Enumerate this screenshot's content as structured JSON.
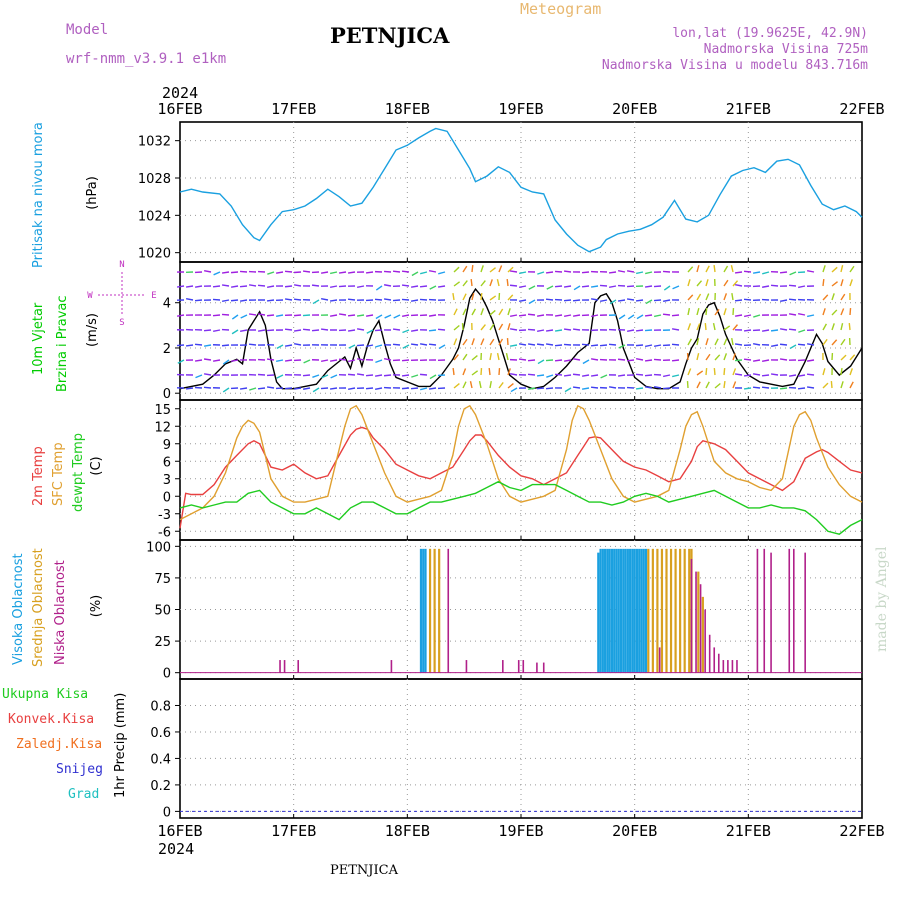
{
  "header": {
    "model_label": "Model",
    "model_name": "wrf-nmm_v3.9.1  e1km",
    "location": "PETNJICA",
    "chart_type": "Meteogram",
    "coords": "lon,lat (19.9625E, 42.9N)",
    "altitude": "Nadmorska Visina 725m",
    "model_altitude": "Nadmorska Visina u modelu 843.716m",
    "footer_location": "PETNJICA",
    "credit": "made by Angel"
  },
  "time_axis": {
    "year": "2024",
    "ticks": [
      "16FEB",
      "17FEB",
      "18FEB",
      "19FEB",
      "20FEB",
      "21FEB",
      "22FEB"
    ],
    "range_days": [
      0,
      6
    ]
  },
  "colors": {
    "pressure": "#1aa0e0",
    "wind_label": "#00cc00",
    "temp2m": "#e84040",
    "sfc": "#e0a030",
    "dewpt": "#20cc20",
    "high_cloud": "#1aa0e0",
    "mid_cloud": "#d8a020",
    "low_cloud": "#b0208a",
    "precip_total": "#20cc20",
    "precip_conv": "#e84040",
    "precip_frozen": "#f07020",
    "snow": "#3030d0",
    "hail": "#20c0c0",
    "compass": "#c030c0"
  },
  "panels": {
    "pressure": {
      "label1": "Pritisak na nivou mora",
      "unit": "(hPa)"
    },
    "wind": {
      "label1": "10m Vjetar",
      "label2": "Brzina i Pravac",
      "unit": "(m/s)",
      "compass_n": "N",
      "compass_s": "S",
      "compass_e": "E",
      "compass_w": "W"
    },
    "temp": {
      "label1": "2m Temp",
      "label2": "SFC Temp",
      "label3": "dewpt Temp",
      "unit": "(C)"
    },
    "cloud": {
      "label1": "Visoka Oblacnost",
      "label2": "Srednja Oblacnost",
      "label3": "Niska Oblacnost",
      "unit": "(%)"
    },
    "precip": {
      "label1": "Ukupna Kisa",
      "label2": "Konvek.Kisa",
      "label3": "Zaledj.Kisa",
      "label4": "Snijeg",
      "label5": "Grad",
      "unit": "1hr Precip (mm)"
    }
  },
  "chart_data": [
    {
      "type": "line",
      "name": "pressure",
      "ylim": [
        1019,
        1034
      ],
      "yticks": [
        1020,
        1024,
        1028,
        1032
      ],
      "series": [
        {
          "name": "Pritisak na nivou mora",
          "x": [
            0,
            0.1,
            0.2,
            0.35,
            0.45,
            0.55,
            0.65,
            0.7,
            0.8,
            0.9,
            1.0,
            1.1,
            1.2,
            1.3,
            1.4,
            1.5,
            1.6,
            1.7,
            1.8,
            1.9,
            2.0,
            2.1,
            2.2,
            2.25,
            2.35,
            2.45,
            2.55,
            2.6,
            2.7,
            2.8,
            2.9,
            3.0,
            3.1,
            3.2,
            3.3,
            3.4,
            3.5,
            3.6,
            3.7,
            3.75,
            3.85,
            3.95,
            4.05,
            4.15,
            4.25,
            4.35,
            4.45,
            4.55,
            4.65,
            4.75,
            4.85,
            4.95,
            5.05,
            5.15,
            5.25,
            5.35,
            5.45,
            5.55,
            5.65,
            5.75,
            5.85,
            5.95,
            6.0
          ],
          "y": [
            1026.5,
            1026.8,
            1026.5,
            1026.3,
            1025,
            1023,
            1021.6,
            1021.3,
            1023,
            1024.4,
            1024.6,
            1025,
            1025.8,
            1026.8,
            1026,
            1025,
            1025.3,
            1027,
            1029,
            1031,
            1031.5,
            1032.3,
            1033,
            1033.3,
            1033,
            1031,
            1029,
            1027.6,
            1028.2,
            1029.2,
            1028.6,
            1027,
            1026.5,
            1026.3,
            1023.5,
            1022,
            1020.8,
            1020.1,
            1020.6,
            1021.4,
            1022,
            1022.3,
            1022.5,
            1023,
            1023.8,
            1025.6,
            1023.6,
            1023.3,
            1024,
            1026.2,
            1028.2,
            1028.8,
            1029.1,
            1028.6,
            1029.8,
            1030,
            1029.4,
            1027.2,
            1025.2,
            1024.6,
            1025,
            1024.4,
            1023.8
          ]
        }
      ]
    },
    {
      "type": "line",
      "name": "wind",
      "ylim": [
        -0.3,
        5.8
      ],
      "yticks": [
        0,
        2,
        4
      ],
      "series": [
        {
          "name": "10m Vjetar",
          "x": [
            0,
            0.2,
            0.3,
            0.4,
            0.5,
            0.55,
            0.6,
            0.65,
            0.7,
            0.75,
            0.8,
            0.85,
            0.9,
            1.0,
            1.1,
            1.2,
            1.3,
            1.4,
            1.45,
            1.5,
            1.55,
            1.6,
            1.65,
            1.7,
            1.75,
            1.8,
            1.85,
            1.9,
            2.0,
            2.1,
            2.2,
            2.3,
            2.4,
            2.45,
            2.5,
            2.55,
            2.6,
            2.65,
            2.7,
            2.75,
            2.8,
            2.85,
            2.9,
            3.0,
            3.1,
            3.2,
            3.3,
            3.4,
            3.5,
            3.6,
            3.65,
            3.7,
            3.75,
            3.8,
            3.85,
            3.9,
            4.0,
            4.1,
            4.2,
            4.3,
            4.4,
            4.45,
            4.5,
            4.55,
            4.6,
            4.65,
            4.7,
            4.75,
            4.8,
            4.9,
            5.0,
            5.1,
            5.2,
            5.3,
            5.4,
            5.5,
            5.6,
            5.65,
            5.7,
            5.8,
            5.9,
            6.0
          ],
          "y": [
            0.2,
            0.4,
            0.8,
            1.3,
            1.5,
            1.3,
            2.8,
            3.2,
            3.6,
            3.0,
            1.5,
            0.5,
            0.2,
            0.2,
            0.3,
            0.4,
            1.0,
            1.4,
            1.6,
            1.1,
            2.0,
            1.2,
            2.1,
            2.8,
            3.2,
            2.2,
            1.3,
            0.7,
            0.5,
            0.3,
            0.3,
            0.8,
            1.5,
            2.0,
            3.0,
            4.2,
            4.6,
            4.3,
            3.8,
            3.2,
            2.4,
            1.6,
            0.8,
            0.4,
            0.2,
            0.3,
            0.7,
            1.2,
            1.8,
            2.2,
            4.0,
            4.3,
            4.4,
            4.0,
            3.2,
            2.0,
            0.7,
            0.3,
            0.2,
            0.2,
            0.5,
            1.3,
            2.0,
            2.4,
            3.5,
            3.9,
            4.0,
            3.4,
            2.6,
            1.5,
            0.8,
            0.5,
            0.4,
            0.3,
            0.4,
            1.4,
            2.6,
            2.2,
            1.4,
            0.8,
            1.2,
            2.0
          ]
        }
      ]
    },
    {
      "type": "line",
      "name": "temperature",
      "ylim": [
        -7.5,
        16.5
      ],
      "yticks": [
        -6,
        -3,
        0,
        3,
        6,
        9,
        12,
        15
      ],
      "series": [
        {
          "name": "2m Temp",
          "x": [
            0,
            0.05,
            0.1,
            0.2,
            0.3,
            0.4,
            0.5,
            0.6,
            0.65,
            0.7,
            0.75,
            0.8,
            0.9,
            1.0,
            1.1,
            1.2,
            1.3,
            1.4,
            1.5,
            1.55,
            1.6,
            1.65,
            1.7,
            1.8,
            1.9,
            2.0,
            2.1,
            2.2,
            2.3,
            2.4,
            2.5,
            2.55,
            2.6,
            2.65,
            2.7,
            2.8,
            2.9,
            3.0,
            3.1,
            3.2,
            3.3,
            3.4,
            3.5,
            3.55,
            3.6,
            3.65,
            3.7,
            3.8,
            3.9,
            4.0,
            4.1,
            4.2,
            4.3,
            4.4,
            4.5,
            4.55,
            4.6,
            4.7,
            4.8,
            4.9,
            5.0,
            5.1,
            5.2,
            5.3,
            5.4,
            5.5,
            5.6,
            5.65,
            5.7,
            5.8,
            5.9,
            6.0
          ],
          "y": [
            -5.5,
            0.5,
            0.3,
            0.3,
            2,
            5,
            7,
            9,
            9.5,
            9,
            7,
            5,
            4.5,
            5.5,
            4,
            3,
            3.5,
            7,
            10.5,
            11.5,
            11.8,
            11.5,
            10,
            8,
            5.5,
            4.5,
            3.5,
            3,
            4,
            5,
            8,
            9.5,
            10.5,
            10.5,
            9.5,
            7,
            5,
            3.5,
            3,
            2,
            3,
            4,
            7,
            8.5,
            10,
            10.2,
            10,
            8,
            6,
            5,
            4.5,
            3.5,
            2.5,
            3,
            6,
            8.5,
            9.5,
            9,
            8,
            6,
            4,
            3,
            2,
            1,
            2.5,
            6.5,
            7.6,
            8,
            7.5,
            6,
            4.5,
            4
          ]
        },
        {
          "name": "SFC Temp",
          "x": [
            0,
            0.1,
            0.2,
            0.3,
            0.4,
            0.5,
            0.55,
            0.6,
            0.65,
            0.7,
            0.75,
            0.8,
            0.9,
            1.0,
            1.1,
            1.2,
            1.3,
            1.4,
            1.45,
            1.5,
            1.55,
            1.6,
            1.7,
            1.8,
            1.9,
            2.0,
            2.1,
            2.2,
            2.3,
            2.4,
            2.45,
            2.5,
            2.55,
            2.6,
            2.7,
            2.8,
            2.9,
            3.0,
            3.1,
            3.2,
            3.3,
            3.4,
            3.45,
            3.5,
            3.55,
            3.6,
            3.7,
            3.8,
            3.9,
            4.0,
            4.1,
            4.2,
            4.3,
            4.4,
            4.45,
            4.5,
            4.55,
            4.6,
            4.7,
            4.8,
            4.9,
            5.0,
            5.1,
            5.2,
            5.3,
            5.4,
            5.45,
            5.5,
            5.55,
            5.6,
            5.7,
            5.8,
            5.9,
            6.0
          ],
          "y": [
            -4,
            -3,
            -2,
            0,
            4,
            10,
            12,
            13,
            12.5,
            11,
            7,
            3,
            0,
            -1,
            -1,
            -0.5,
            0,
            8,
            12,
            15,
            15.5,
            14,
            9,
            4,
            0,
            -1,
            -0.5,
            0,
            1,
            7,
            12,
            15,
            15.5,
            14,
            9,
            3,
            0,
            -1,
            -0.5,
            0,
            1,
            8,
            13,
            15.5,
            15,
            13,
            8,
            3,
            0,
            -1,
            -0.5,
            0,
            1,
            8,
            12,
            14,
            14.5,
            12,
            6,
            4,
            3,
            2.5,
            1.5,
            1,
            3,
            12,
            14,
            14.5,
            13,
            10,
            5,
            2,
            0,
            -1
          ]
        },
        {
          "name": "dewpt Temp",
          "x": [
            0,
            0.1,
            0.2,
            0.3,
            0.4,
            0.5,
            0.6,
            0.7,
            0.8,
            0.9,
            1.0,
            1.1,
            1.2,
            1.3,
            1.4,
            1.5,
            1.6,
            1.7,
            1.8,
            1.9,
            2.0,
            2.1,
            2.2,
            2.3,
            2.4,
            2.5,
            2.6,
            2.7,
            2.8,
            2.9,
            3.0,
            3.1,
            3.2,
            3.3,
            3.4,
            3.5,
            3.6,
            3.7,
            3.8,
            3.9,
            4.0,
            4.1,
            4.2,
            4.3,
            4.4,
            4.5,
            4.6,
            4.7,
            4.8,
            4.9,
            5.0,
            5.1,
            5.2,
            5.3,
            5.4,
            5.5,
            5.6,
            5.7,
            5.8,
            5.9,
            6.0
          ],
          "y": [
            -2,
            -1.5,
            -2,
            -1.5,
            -1,
            -1,
            0.5,
            1,
            -1,
            -2,
            -3,
            -3,
            -2,
            -3,
            -4,
            -2,
            -1,
            -1,
            -2,
            -3,
            -3,
            -2,
            -1,
            -1,
            -0.5,
            0,
            0.5,
            1.5,
            2.5,
            1.5,
            1,
            2,
            2,
            2,
            1,
            0,
            -1,
            -1,
            -1.5,
            -1,
            0,
            0.5,
            0,
            -1,
            -0.5,
            0,
            0.5,
            1,
            0,
            -1,
            -2,
            -2,
            -1.5,
            -2,
            -2,
            -2.5,
            -4,
            -6,
            -6.5,
            -5,
            -4
          ]
        }
      ]
    },
    {
      "type": "bar",
      "name": "cloud",
      "ylim": [
        -5,
        105
      ],
      "yticks": [
        0,
        25,
        50,
        75,
        100
      ],
      "series": [
        {
          "name": "Visoka Oblacnost",
          "x": [
            2.12,
            2.14,
            2.16,
            3.68,
            3.7,
            3.72,
            3.74,
            3.76,
            3.78,
            3.8,
            3.82,
            3.84,
            3.86,
            3.88,
            3.9,
            3.92,
            3.94,
            3.96,
            3.98,
            4.0,
            4.02,
            4.04,
            4.06,
            4.08,
            4.1
          ],
          "y": [
            98,
            98,
            98,
            95,
            98,
            98,
            98,
            98,
            98,
            98,
            98,
            98,
            98,
            98,
            98,
            98,
            98,
            98,
            98,
            98,
            98,
            98,
            98,
            98,
            98
          ]
        },
        {
          "name": "Srednja Oblacnost",
          "x": [
            2.2,
            2.24,
            2.28,
            4.12,
            4.16,
            4.2,
            4.24,
            4.28,
            4.32,
            4.36,
            4.4,
            4.44,
            4.48,
            4.5,
            4.56,
            4.6
          ],
          "y": [
            98,
            98,
            98,
            98,
            98,
            98,
            98,
            98,
            98,
            98,
            98,
            98,
            98,
            98,
            80,
            60
          ]
        },
        {
          "name": "Niska Oblacnost",
          "x": [
            0.88,
            0.92,
            1.04,
            1.86,
            2.36,
            2.52,
            2.84,
            2.98,
            3.02,
            3.14,
            3.2,
            4.22,
            4.5,
            4.54,
            4.58,
            4.62,
            4.66,
            4.7,
            4.74,
            4.78,
            4.82,
            4.86,
            4.9,
            5.08,
            5.14,
            5.2,
            5.36,
            5.4,
            5.5
          ],
          "y": [
            10,
            10,
            10,
            10,
            98,
            10,
            10,
            10,
            10,
            8,
            8,
            20,
            90,
            80,
            70,
            50,
            30,
            20,
            15,
            10,
            10,
            10,
            10,
            98,
            98,
            95,
            98,
            98,
            95
          ]
        }
      ]
    },
    {
      "type": "bar",
      "name": "precip",
      "ylim": [
        -0.05,
        1.0
      ],
      "yticks": [
        0,
        0.2,
        0.4,
        0.6,
        0.8
      ],
      "series": [
        {
          "name": "Ukupna Kisa",
          "x": [],
          "y": []
        }
      ]
    }
  ]
}
